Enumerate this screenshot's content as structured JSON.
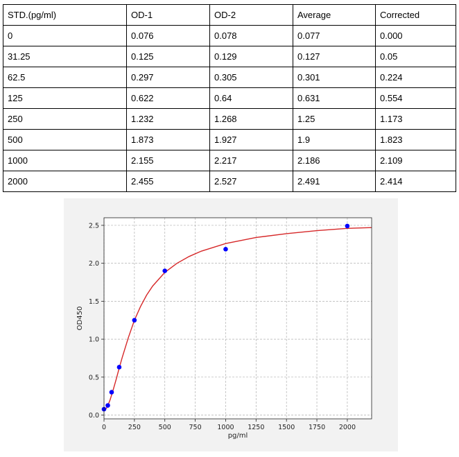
{
  "table": {
    "headers": [
      "STD.(pg/ml)",
      "OD-1",
      "OD-2",
      "Average",
      "Corrected"
    ],
    "rows": [
      [
        "0",
        "0.076",
        "0.078",
        "0.077",
        "0.000"
      ],
      [
        "31.25",
        "0.125",
        "0.129",
        "0.127",
        "0.05"
      ],
      [
        "62.5",
        "0.297",
        "0.305",
        "0.301",
        "0.224"
      ],
      [
        "125",
        "0.622",
        "0.64",
        "0.631",
        "0.554"
      ],
      [
        "250",
        "1.232",
        "1.268",
        "1.25",
        "1.173"
      ],
      [
        "500",
        "1.873",
        "1.927",
        "1.9",
        "1.823"
      ],
      [
        "1000",
        "2.155",
        "2.217",
        "2.186",
        "2.109"
      ],
      [
        "2000",
        "2.455",
        "2.527",
        "2.491",
        "2.414"
      ]
    ]
  },
  "chart_data": {
    "type": "scatter",
    "title": "",
    "xlabel": "pg/ml",
    "ylabel": "OD450",
    "xlim": [
      0,
      2200
    ],
    "ylim": [
      -0.05,
      2.6
    ],
    "xticks": [
      0,
      250,
      500,
      750,
      1000,
      1250,
      1500,
      1750,
      2000
    ],
    "yticks": [
      0.0,
      0.5,
      1.0,
      1.5,
      2.0,
      2.5
    ],
    "xtick_labels": [
      "0",
      "250",
      "500",
      "750",
      "1000",
      "1250",
      "1500",
      "1750",
      "2000"
    ],
    "ytick_labels": [
      "0.0",
      "0.5",
      "1.0",
      "1.5",
      "2.0",
      "2.5"
    ],
    "grid": true,
    "points": {
      "x": [
        0,
        31.25,
        62.5,
        125,
        250,
        500,
        1000,
        2000
      ],
      "y": [
        0.077,
        0.127,
        0.301,
        0.631,
        1.25,
        1.9,
        2.186,
        2.491
      ],
      "color": "#0000ff"
    },
    "fit_curve": {
      "x": [
        0,
        25,
        50,
        75,
        100,
        125,
        150,
        200,
        250,
        300,
        350,
        400,
        500,
        600,
        700,
        800,
        1000,
        1250,
        1500,
        1750,
        2000,
        2200
      ],
      "y": [
        0.06,
        0.1,
        0.2,
        0.33,
        0.47,
        0.62,
        0.76,
        1.02,
        1.25,
        1.43,
        1.58,
        1.7,
        1.88,
        2.0,
        2.09,
        2.16,
        2.26,
        2.34,
        2.39,
        2.43,
        2.46,
        2.47
      ],
      "color": "#d62728"
    }
  }
}
